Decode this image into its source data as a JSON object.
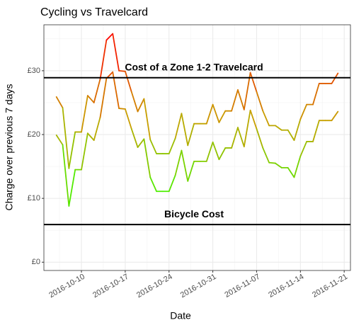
{
  "chart_data": {
    "type": "line",
    "title": "Cycling vs Travelcard",
    "x_label": "Date",
    "y_label": "Charge over previous 7 days",
    "x": [
      "2016-10-06",
      "2016-10-07",
      "2016-10-08",
      "2016-10-09",
      "2016-10-10",
      "2016-10-11",
      "2016-10-12",
      "2016-10-13",
      "2016-10-14",
      "2016-10-15",
      "2016-10-16",
      "2016-10-17",
      "2016-10-18",
      "2016-10-19",
      "2016-10-20",
      "2016-10-21",
      "2016-10-22",
      "2016-10-23",
      "2016-10-24",
      "2016-10-25",
      "2016-10-26",
      "2016-10-27",
      "2016-10-28",
      "2016-10-29",
      "2016-10-30",
      "2016-10-31",
      "2016-11-01",
      "2016-11-02",
      "2016-11-03",
      "2016-11-04",
      "2016-11-05",
      "2016-11-06",
      "2016-11-07",
      "2016-11-08",
      "2016-11-09",
      "2016-11-10",
      "2016-11-11",
      "2016-11-12",
      "2016-11-13",
      "2016-11-14",
      "2016-11-15",
      "2016-11-16",
      "2016-11-17",
      "2016-11-18",
      "2016-11-19",
      "2016-11-20"
    ],
    "series": [
      {
        "values": [
          25.9,
          24.2,
          14.7,
          20.4,
          20.4,
          26.1,
          25,
          28.7,
          34.8,
          35.8,
          30,
          29.9,
          26.7,
          23.6,
          25.6,
          19.2,
          17,
          17,
          17,
          19.4,
          23.3,
          18.3,
          21.7,
          21.7,
          21.7,
          24.7,
          21.9,
          23.7,
          23.7,
          27,
          23.9,
          29.7,
          26.7,
          23.7,
          21.4,
          21.4,
          20.7,
          20.7,
          19.1,
          22.4,
          24.7,
          24.7,
          28,
          28,
          28,
          29.6
        ]
      },
      {
        "values": [
          19.9,
          18.4,
          8.8,
          14.5,
          14.5,
          20.2,
          19.1,
          22.7,
          28.8,
          29.8,
          24.1,
          24,
          20.9,
          18,
          19.3,
          13.3,
          11.1,
          11.1,
          11.1,
          13.6,
          17.5,
          12.7,
          15.8,
          15.8,
          15.8,
          18.8,
          16.1,
          17.9,
          17.9,
          21.1,
          18.1,
          23.8,
          20.9,
          17.9,
          15.6,
          15.5,
          14.8,
          14.8,
          13.3,
          16.6,
          18.9,
          18.9,
          22.2,
          22.2,
          22.2,
          23.6
        ]
      }
    ],
    "color_gradient": [
      "#33ff00",
      "#c8a000",
      "#ff0000"
    ],
    "hlines": [
      {
        "value": 28.9,
        "label": "Cost of a Zone 1-2 Travelcard",
        "color": "#000000"
      },
      {
        "value": 5.9,
        "label": "Bicycle Cost",
        "color": "#000000"
      }
    ],
    "xlim": [
      "2016-10-04",
      "2016-11-22"
    ],
    "xticks": [
      "2016-10-10",
      "2016-10-17",
      "2016-10-24",
      "2016-10-31",
      "2016-11-07",
      "2016-11-14",
      "2016-11-21"
    ],
    "ylim": [
      -1.3,
      37.2
    ],
    "yticks": [
      {
        "value": 0,
        "label": "£0"
      },
      {
        "value": 10,
        "label": "£10"
      },
      {
        "value": 20,
        "label": "£20"
      },
      {
        "value": 30,
        "label": "£30"
      }
    ],
    "grid": true
  }
}
